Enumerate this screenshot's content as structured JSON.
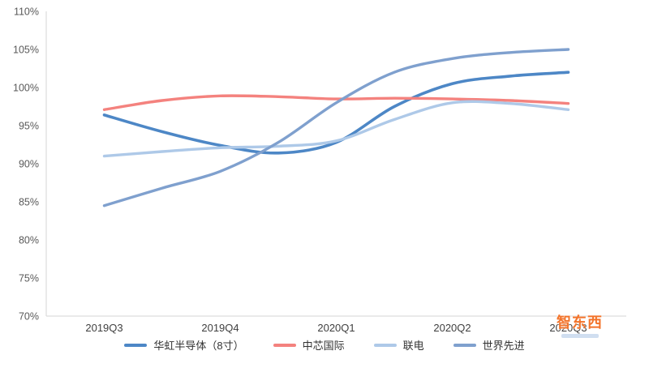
{
  "chart_data": {
    "type": "line",
    "title": "",
    "x_categories": [
      "2019Q3",
      "2019Q4",
      "2020Q1",
      "2020Q2",
      "2020Q3"
    ],
    "y_axis": {
      "min": 70,
      "max": 110,
      "step": 5,
      "unit": "%"
    },
    "y_tick_labels": [
      "110%",
      "105%",
      "100%",
      "95%",
      "90%",
      "85%",
      "80%",
      "75%",
      "70%"
    ],
    "grid": false,
    "legend_position": "bottom",
    "axis_color": "#d6d6d6",
    "tick_color": "#595959",
    "series": [
      {
        "id": "huahong",
        "name": "华虹半导体（8寸）",
        "color": "#4d87c6",
        "width": 3.6,
        "x": [
          0,
          0.5,
          1,
          1.5,
          2,
          2.5,
          3,
          3.5,
          4
        ],
        "values": [
          96.4,
          94.2,
          92.4,
          91.4,
          92.8,
          97.5,
          100.5,
          101.5,
          102.0
        ]
      },
      {
        "id": "smic",
        "name": "中芯国际",
        "color": "#f4827e",
        "width": 3.4,
        "x": [
          0,
          0.5,
          1,
          1.5,
          2,
          2.5,
          3,
          3.5,
          4
        ],
        "values": [
          97.1,
          98.3,
          98.9,
          98.8,
          98.5,
          98.6,
          98.5,
          98.3,
          97.9
        ]
      },
      {
        "id": "umc",
        "name": "联电",
        "color": "#aec9e8",
        "width": 3.4,
        "x": [
          0,
          0.5,
          1,
          1.5,
          2,
          2.5,
          3,
          3.5,
          4
        ],
        "values": [
          91.0,
          91.6,
          92.1,
          92.3,
          93.0,
          95.8,
          98.0,
          97.9,
          97.1
        ]
      },
      {
        "id": "vis",
        "name": "世界先进",
        "color": "#7fa0ce",
        "width": 3.4,
        "x": [
          0,
          0.5,
          1,
          1.5,
          2,
          2.5,
          3,
          3.5,
          4
        ],
        "values": [
          84.5,
          86.8,
          89.0,
          92.8,
          98.0,
          102.0,
          103.8,
          104.6,
          105.0
        ]
      }
    ]
  },
  "watermark": {
    "text": "智东西",
    "color": "#f3742b"
  }
}
